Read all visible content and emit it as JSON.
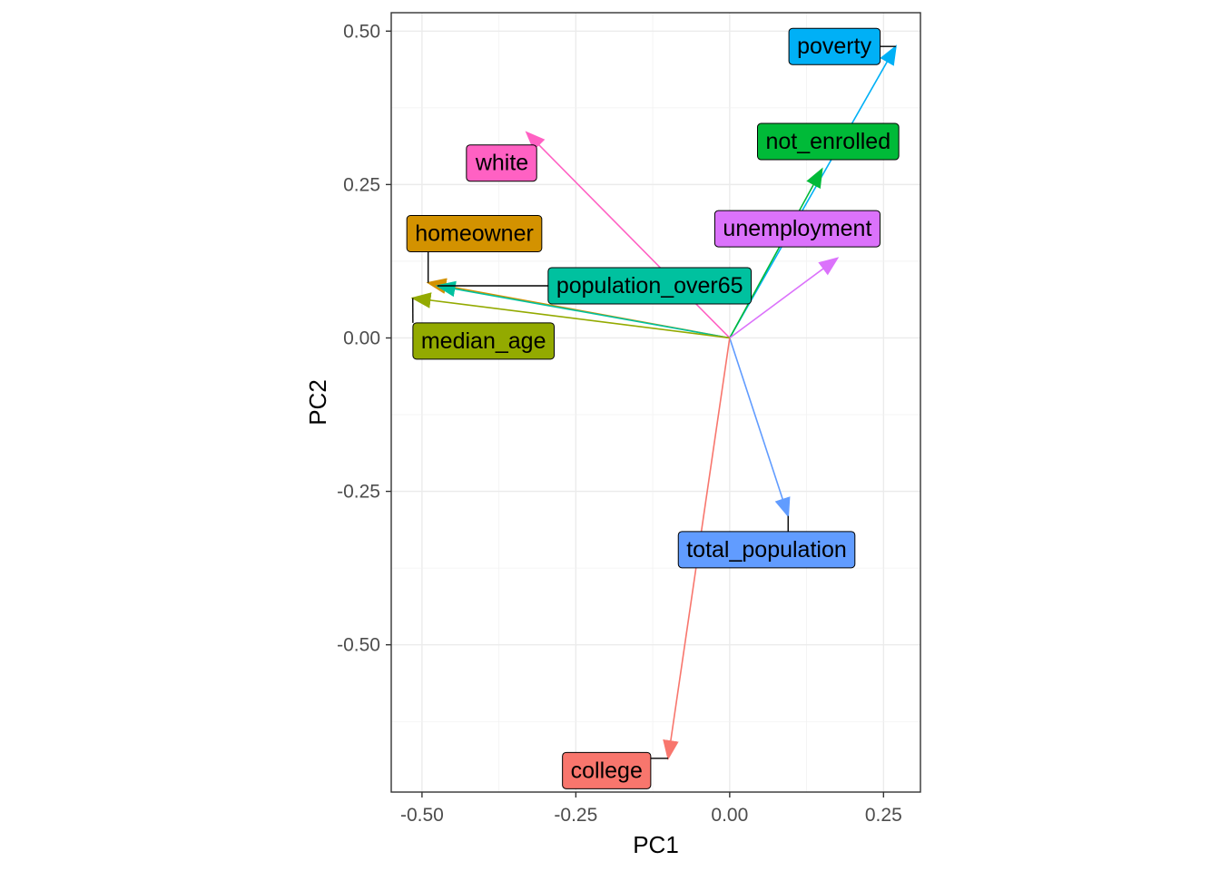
{
  "chart_data": {
    "type": "scatter",
    "subtype": "pca-loadings-arrows",
    "title": "",
    "xlabel": "PC1",
    "ylabel": "PC2",
    "xlim": [
      -0.55,
      0.31
    ],
    "ylim": [
      -0.74,
      0.53
    ],
    "x_ticks": [
      -0.5,
      -0.25,
      0.0,
      0.25
    ],
    "x_tick_labels": [
      "-0.50",
      "-0.25",
      "0.00",
      "0.25"
    ],
    "y_ticks": [
      -0.5,
      -0.25,
      0.0,
      0.25,
      0.5
    ],
    "y_tick_labels": [
      "-0.50",
      "-0.25",
      "0.00",
      "0.25",
      "0.50"
    ],
    "grid": true,
    "legend": "none",
    "origin": [
      0,
      0
    ],
    "series": [
      {
        "name": "poverty",
        "x": 0.27,
        "y": 0.475,
        "color": "#00B0F6"
      },
      {
        "name": "not_enrolled",
        "x": 0.15,
        "y": 0.275,
        "color": "#00BA38"
      },
      {
        "name": "white",
        "x": -0.33,
        "y": 0.335,
        "color": "#FF61C3"
      },
      {
        "name": "unemployment",
        "x": 0.175,
        "y": 0.13,
        "color": "#DB72FB"
      },
      {
        "name": "homeowner",
        "x": -0.49,
        "y": 0.09,
        "color": "#D39200"
      },
      {
        "name": "population_over65",
        "x": -0.475,
        "y": 0.085,
        "color": "#00C19F"
      },
      {
        "name": "median_age",
        "x": -0.515,
        "y": 0.065,
        "color": "#93AA00"
      },
      {
        "name": "total_population",
        "x": 0.095,
        "y": -0.29,
        "color": "#619CFF"
      },
      {
        "name": "college",
        "x": -0.1,
        "y": -0.685,
        "color": "#F8766D"
      }
    ],
    "labels": [
      {
        "text": "poverty",
        "x": 0.17,
        "y": 0.475
      },
      {
        "text": "not_enrolled",
        "x": 0.16,
        "y": 0.32
      },
      {
        "text": "white",
        "x": -0.37,
        "y": 0.285
      },
      {
        "text": "unemployment",
        "x": 0.11,
        "y": 0.178
      },
      {
        "text": "homeowner",
        "x": -0.415,
        "y": 0.17
      },
      {
        "text": "population_over65",
        "x": -0.13,
        "y": 0.085
      },
      {
        "text": "median_age",
        "x": -0.4,
        "y": -0.005
      },
      {
        "text": "total_population",
        "x": 0.06,
        "y": -0.345
      },
      {
        "text": "college",
        "x": -0.2,
        "y": -0.705
      }
    ]
  }
}
